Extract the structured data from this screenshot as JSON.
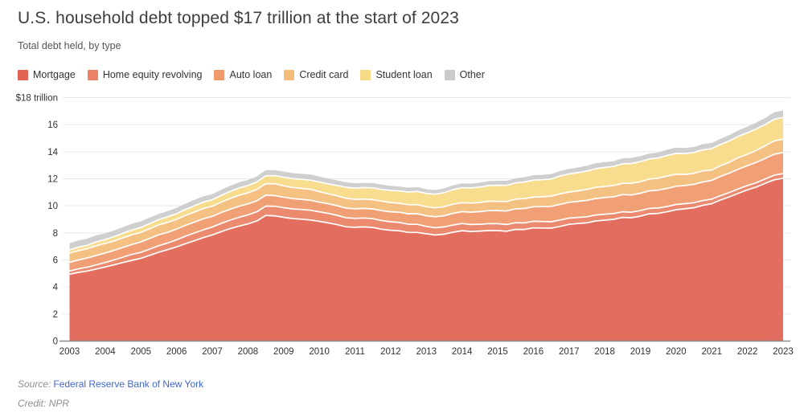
{
  "header": {
    "title": "U.S. household debt topped $17 trillion at the start of 2023",
    "subtitle": "Total debt held, by type"
  },
  "footer": {
    "source_label": "Source:",
    "source_link": "Federal Reserve Bank of New York",
    "source_link_color": "#4066d0",
    "credit_label": "Credit:",
    "credit_value": "NPR"
  },
  "chart_data": {
    "type": "area",
    "stacked": true,
    "title": "U.S. household debt topped $17 trillion at the start of 2023",
    "subtitle": "Total debt held, by type",
    "unit": "trillions of USD",
    "x_start": 2003.0,
    "x_step": 0.25,
    "x_end": 2023.0,
    "x_tick_labels": [
      "2003",
      "2004",
      "2005",
      "2006",
      "2007",
      "2008",
      "2009",
      "2010",
      "2011",
      "2012",
      "2013",
      "2014",
      "2015",
      "2016",
      "2017",
      "2018",
      "2019",
      "2020",
      "2021",
      "2022",
      "2023"
    ],
    "y_axis": {
      "min": 0,
      "max": 18,
      "tick_step": 2,
      "top_label": "$18 trillion",
      "tick_labels": [
        "0",
        "2",
        "4",
        "6",
        "8",
        "10",
        "12",
        "14",
        "16"
      ]
    },
    "grid": true,
    "grid_color": "#e9e9e9",
    "axis_line_color": "#8c8c8c",
    "tick_label_color": "#333333",
    "separator_color": "#ffffff",
    "legend_position": "top-left",
    "series": [
      {
        "name": "Mortgage",
        "color": "#e16354",
        "values": [
          4.94,
          5.08,
          5.18,
          5.33,
          5.48,
          5.64,
          5.81,
          5.97,
          6.12,
          6.34,
          6.57,
          6.76,
          6.96,
          7.2,
          7.42,
          7.65,
          7.85,
          8.09,
          8.31,
          8.5,
          8.66,
          8.88,
          9.29,
          9.26,
          9.15,
          9.06,
          9.01,
          8.95,
          8.85,
          8.74,
          8.61,
          8.45,
          8.41,
          8.44,
          8.4,
          8.27,
          8.19,
          8.15,
          8.03,
          8.03,
          7.93,
          7.84,
          7.9,
          8.05,
          8.16,
          8.1,
          8.13,
          8.17,
          8.17,
          8.12,
          8.26,
          8.25,
          8.37,
          8.36,
          8.35,
          8.48,
          8.63,
          8.69,
          8.74,
          8.88,
          8.94,
          9.0,
          9.14,
          9.12,
          9.24,
          9.41,
          9.44,
          9.56,
          9.71,
          9.78,
          9.86,
          10.04,
          10.16,
          10.44,
          10.67,
          10.93,
          11.18,
          11.39,
          11.67,
          11.92,
          12.04
        ]
      },
      {
        "name": "Home equity revolving",
        "color": "#eb8165",
        "values": [
          0.24,
          0.26,
          0.28,
          0.3,
          0.33,
          0.36,
          0.4,
          0.44,
          0.44,
          0.46,
          0.48,
          0.49,
          0.53,
          0.56,
          0.57,
          0.58,
          0.58,
          0.61,
          0.63,
          0.65,
          0.67,
          0.68,
          0.69,
          0.71,
          0.71,
          0.71,
          0.72,
          0.72,
          0.71,
          0.7,
          0.69,
          0.67,
          0.66,
          0.66,
          0.65,
          0.64,
          0.63,
          0.62,
          0.61,
          0.6,
          0.55,
          0.54,
          0.54,
          0.53,
          0.53,
          0.52,
          0.51,
          0.51,
          0.51,
          0.5,
          0.49,
          0.49,
          0.49,
          0.48,
          0.47,
          0.47,
          0.46,
          0.45,
          0.45,
          0.44,
          0.44,
          0.43,
          0.42,
          0.41,
          0.41,
          0.4,
          0.4,
          0.39,
          0.39,
          0.38,
          0.37,
          0.35,
          0.34,
          0.32,
          0.32,
          0.32,
          0.32,
          0.32,
          0.32,
          0.34,
          0.34
        ]
      },
      {
        "name": "Auto loan",
        "color": "#f0996a",
        "values": [
          0.64,
          0.66,
          0.68,
          0.7,
          0.7,
          0.71,
          0.72,
          0.73,
          0.77,
          0.79,
          0.81,
          0.79,
          0.79,
          0.8,
          0.81,
          0.81,
          0.79,
          0.8,
          0.81,
          0.82,
          0.81,
          0.81,
          0.81,
          0.79,
          0.78,
          0.76,
          0.75,
          0.74,
          0.72,
          0.71,
          0.71,
          0.71,
          0.71,
          0.71,
          0.72,
          0.73,
          0.74,
          0.75,
          0.77,
          0.78,
          0.79,
          0.81,
          0.83,
          0.86,
          0.88,
          0.91,
          0.93,
          0.96,
          0.97,
          1.0,
          1.03,
          1.06,
          1.07,
          1.1,
          1.14,
          1.16,
          1.17,
          1.19,
          1.21,
          1.22,
          1.23,
          1.24,
          1.27,
          1.27,
          1.28,
          1.3,
          1.32,
          1.33,
          1.35,
          1.34,
          1.36,
          1.37,
          1.38,
          1.42,
          1.44,
          1.46,
          1.47,
          1.5,
          1.52,
          1.55,
          1.56
        ]
      },
      {
        "name": "Credit card",
        "color": "#f3bc78",
        "values": [
          0.69,
          0.69,
          0.69,
          0.72,
          0.7,
          0.7,
          0.71,
          0.72,
          0.71,
          0.72,
          0.73,
          0.74,
          0.72,
          0.73,
          0.74,
          0.76,
          0.75,
          0.77,
          0.79,
          0.82,
          0.82,
          0.84,
          0.85,
          0.87,
          0.84,
          0.83,
          0.81,
          0.81,
          0.77,
          0.74,
          0.73,
          0.73,
          0.7,
          0.69,
          0.69,
          0.7,
          0.68,
          0.67,
          0.67,
          0.68,
          0.66,
          0.66,
          0.67,
          0.68,
          0.66,
          0.67,
          0.68,
          0.7,
          0.68,
          0.7,
          0.71,
          0.73,
          0.71,
          0.73,
          0.75,
          0.78,
          0.76,
          0.78,
          0.81,
          0.83,
          0.82,
          0.83,
          0.84,
          0.87,
          0.85,
          0.87,
          0.88,
          0.93,
          0.89,
          0.82,
          0.81,
          0.82,
          0.77,
          0.79,
          0.8,
          0.86,
          0.84,
          0.89,
          0.93,
          0.99,
          0.99
        ]
      },
      {
        "name": "Student loan",
        "color": "#f6da84",
        "values": [
          0.24,
          0.25,
          0.26,
          0.28,
          0.3,
          0.32,
          0.33,
          0.35,
          0.36,
          0.38,
          0.39,
          0.41,
          0.42,
          0.44,
          0.46,
          0.47,
          0.48,
          0.5,
          0.52,
          0.53,
          0.54,
          0.56,
          0.58,
          0.6,
          0.63,
          0.65,
          0.67,
          0.68,
          0.71,
          0.73,
          0.76,
          0.81,
          0.83,
          0.85,
          0.87,
          0.87,
          0.9,
          0.91,
          0.94,
          0.97,
          0.99,
          1.01,
          1.03,
          1.08,
          1.11,
          1.12,
          1.13,
          1.16,
          1.19,
          1.19,
          1.2,
          1.23,
          1.26,
          1.26,
          1.28,
          1.31,
          1.34,
          1.34,
          1.36,
          1.38,
          1.41,
          1.41,
          1.44,
          1.46,
          1.49,
          1.48,
          1.5,
          1.51,
          1.54,
          1.54,
          1.55,
          1.56,
          1.58,
          1.57,
          1.58,
          1.58,
          1.59,
          1.59,
          1.57,
          1.6,
          1.6
        ]
      },
      {
        "name": "Other",
        "color": "#cbcbcb",
        "values": [
          0.48,
          0.49,
          0.49,
          0.5,
          0.45,
          0.45,
          0.46,
          0.47,
          0.45,
          0.44,
          0.42,
          0.42,
          0.43,
          0.43,
          0.44,
          0.43,
          0.41,
          0.42,
          0.42,
          0.42,
          0.41,
          0.41,
          0.41,
          0.41,
          0.42,
          0.41,
          0.41,
          0.42,
          0.4,
          0.39,
          0.38,
          0.37,
          0.36,
          0.35,
          0.35,
          0.35,
          0.33,
          0.33,
          0.32,
          0.32,
          0.31,
          0.31,
          0.31,
          0.32,
          0.32,
          0.32,
          0.33,
          0.33,
          0.33,
          0.34,
          0.34,
          0.36,
          0.36,
          0.36,
          0.36,
          0.37,
          0.37,
          0.38,
          0.39,
          0.39,
          0.39,
          0.39,
          0.4,
          0.41,
          0.41,
          0.4,
          0.41,
          0.43,
          0.42,
          0.41,
          0.4,
          0.42,
          0.42,
          0.42,
          0.43,
          0.44,
          0.45,
          0.47,
          0.49,
          0.51,
          0.52
        ]
      }
    ]
  }
}
